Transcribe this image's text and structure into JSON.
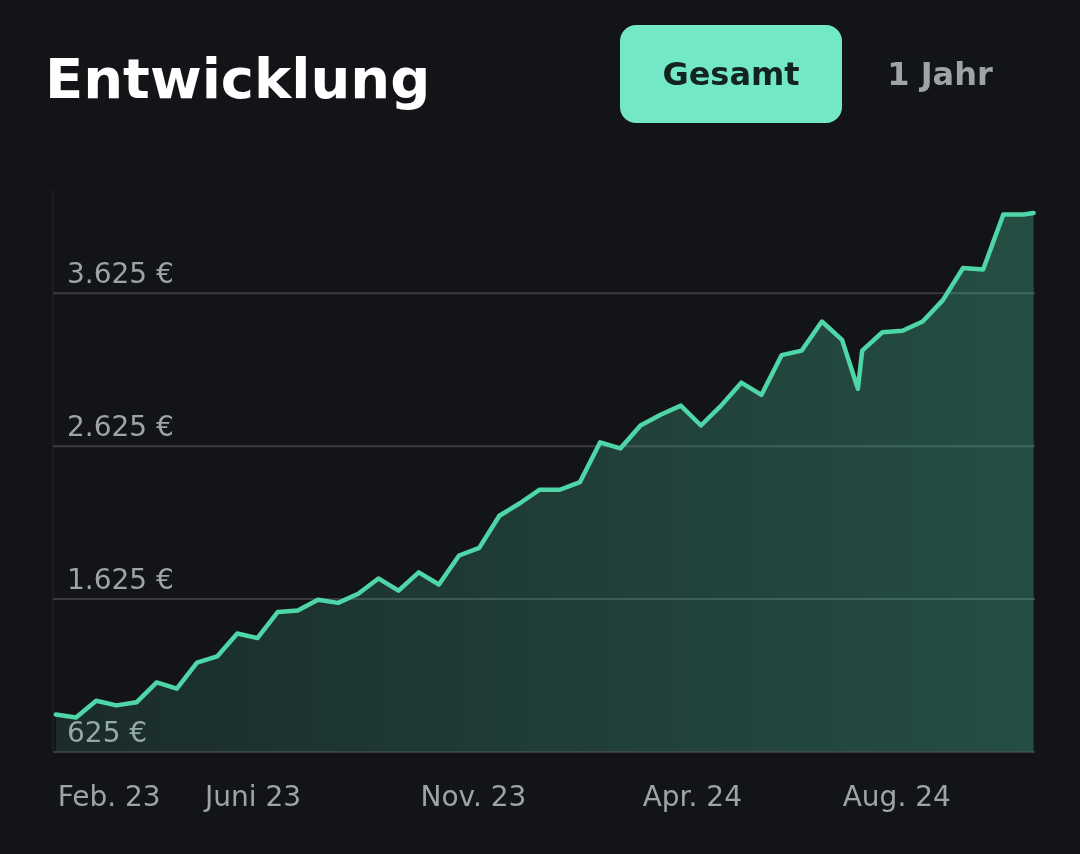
{
  "chart_data": {
    "type": "area",
    "title": "Entwicklung",
    "annotations": [
      "Gesamt",
      "1 Jahr"
    ],
    "x": [
      "2023-01-19",
      "2023-02-02",
      "2023-02-16",
      "2023-03-02",
      "2023-03-16",
      "2023-03-30",
      "2023-04-13",
      "2023-04-27",
      "2023-05-11",
      "2023-05-25",
      "2023-06-08",
      "2023-06-22",
      "2023-07-06",
      "2023-07-20",
      "2023-08-03",
      "2023-08-17",
      "2023-08-31",
      "2023-09-14",
      "2023-09-28",
      "2023-10-12",
      "2023-10-26",
      "2023-11-09",
      "2023-11-23",
      "2023-12-07",
      "2023-12-21",
      "2024-01-04",
      "2024-01-18",
      "2024-02-01",
      "2024-02-15",
      "2024-02-29",
      "2024-03-14",
      "2024-03-28",
      "2024-04-11",
      "2024-04-25",
      "2024-05-09",
      "2024-05-23",
      "2024-06-06",
      "2024-06-20",
      "2024-07-04",
      "2024-07-18",
      "2024-07-29",
      "2024-08-01",
      "2024-08-15",
      "2024-08-29",
      "2024-09-12",
      "2024-09-26",
      "2024-10-10",
      "2024-10-24",
      "2024-11-07",
      "2024-11-21",
      "2024-11-28"
    ],
    "series": [
      {
        "color": "#4fd6a8",
        "values": [
          870,
          850,
          960,
          930,
          950,
          1080,
          1040,
          1210,
          1250,
          1400,
          1370,
          1540,
          1550,
          1620,
          1600,
          1660,
          1760,
          1680,
          1800,
          1720,
          1910,
          1960,
          2170,
          2250,
          2340,
          2340,
          2390,
          2650,
          2610,
          2760,
          2830,
          2890,
          2760,
          2890,
          3040,
          2960,
          3220,
          3250,
          3440,
          3320,
          3000,
          3250,
          3370,
          3380,
          3440,
          3580,
          3790,
          3780,
          4140,
          4140,
          4150
        ]
      }
    ],
    "xlim": [
      "2023-01-17",
      "2024-11-29"
    ],
    "xticks": [
      {
        "value": "2023-02-25",
        "label": "Feb. 23"
      },
      {
        "value": "2023-06-05",
        "label": "Juni 23"
      },
      {
        "value": "2023-11-05",
        "label": "Nov. 23"
      },
      {
        "value": "2024-04-05",
        "label": "Apr. 24"
      },
      {
        "value": "2024-08-25",
        "label": "Aug. 24"
      }
    ],
    "ylim": [
      625,
      4300
    ],
    "yticks": [
      {
        "value": 625,
        "label": "625 €"
      },
      {
        "value": 1625,
        "label": "1.625 €"
      },
      {
        "value": 2625,
        "label": "2.625 €"
      },
      {
        "value": 3625,
        "label": "3.625 €"
      }
    ],
    "grid": "y"
  }
}
